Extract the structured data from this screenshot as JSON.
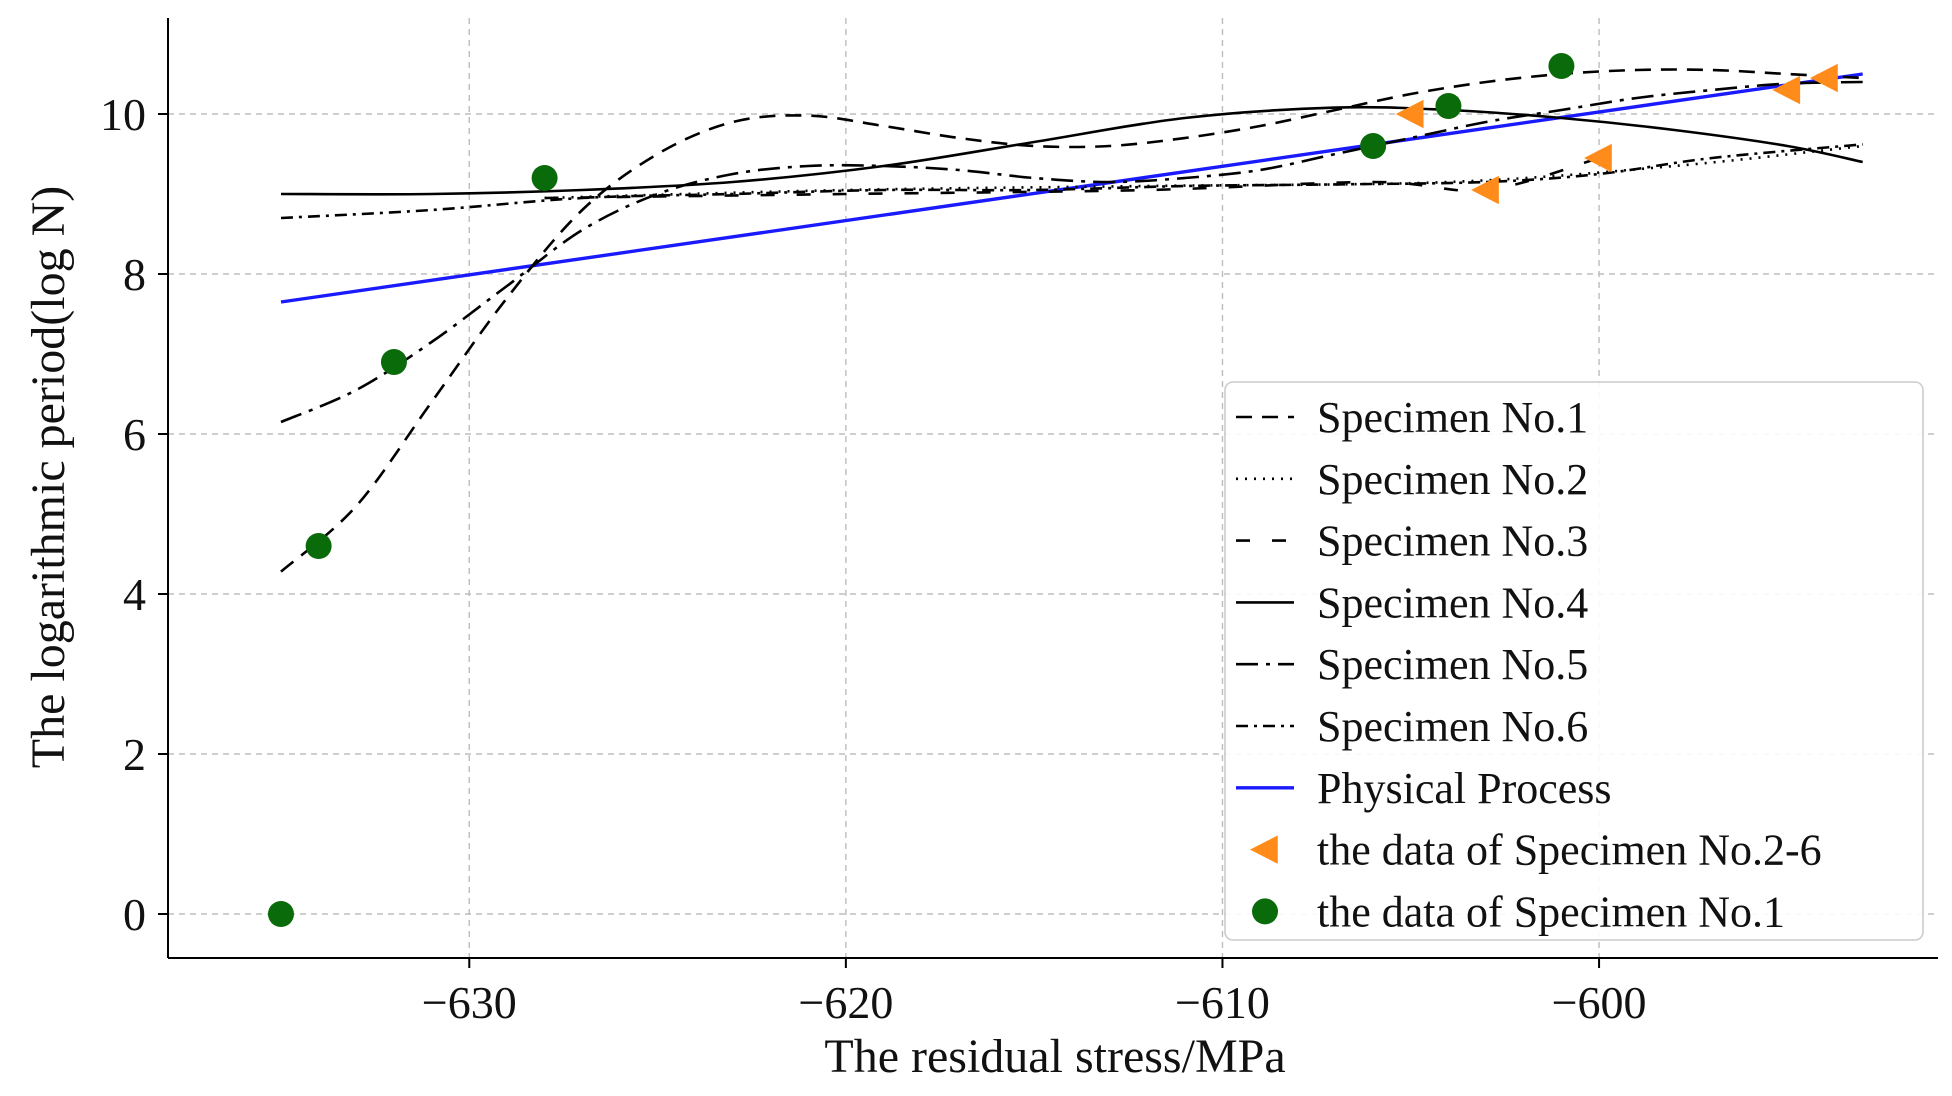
{
  "chart_data": {
    "type": "line",
    "xlabel": "The residual stress/MPa",
    "ylabel": "The logarithmic period(log N)",
    "xlim": [
      -638,
      -591
    ],
    "ylim": [
      -0.55,
      11.2
    ],
    "x_ticks": [
      -630,
      -620,
      -610,
      -600
    ],
    "x_tick_labels": [
      "−630",
      "−620",
      "−610",
      "−600"
    ],
    "y_ticks": [
      0,
      2,
      4,
      6,
      8,
      10
    ],
    "y_tick_labels": [
      "0",
      "2",
      "4",
      "6",
      "8",
      "10"
    ],
    "grid": true,
    "legend_position": "lower-right",
    "series": [
      {
        "name": "Specimen No.1",
        "style": "dashed",
        "color": "#000000",
        "x": [
          -635,
          -633,
          -631,
          -629,
          -627,
          -625,
          -623,
          -621,
          -619,
          -617,
          -615,
          -613,
          -611,
          -609,
          -607,
          -605,
          -603,
          -601,
          -599,
          -597,
          -595,
          -593
        ],
        "y": [
          4.28,
          5.1,
          6.4,
          7.7,
          8.8,
          9.5,
          9.9,
          9.98,
          9.85,
          9.7,
          9.6,
          9.6,
          9.7,
          9.85,
          10.05,
          10.25,
          10.4,
          10.5,
          10.55,
          10.55,
          10.5,
          10.45
        ]
      },
      {
        "name": "Specimen No.2",
        "style": "dotted",
        "color": "#000000",
        "x": [
          -628,
          -620,
          -612,
          -604,
          -598,
          -593
        ],
        "y": [
          8.95,
          9.05,
          9.1,
          9.15,
          9.35,
          9.6
        ]
      },
      {
        "name": "Specimen No.3",
        "style": "loose-dashed",
        "color": "#000000",
        "x": [
          -628,
          -620,
          -612,
          -606,
          -603,
          -600
        ],
        "y": [
          8.95,
          9.0,
          9.05,
          9.15,
          9.05,
          9.45
        ]
      },
      {
        "name": "Specimen No.4",
        "style": "solid",
        "color": "#000000",
        "x": [
          -635,
          -631,
          -627,
          -623,
          -619,
          -615,
          -611,
          -607,
          -604,
          -601,
          -598,
          -595,
          -593
        ],
        "y": [
          9.0,
          9.0,
          9.05,
          9.15,
          9.35,
          9.65,
          9.95,
          10.08,
          10.05,
          9.95,
          9.8,
          9.6,
          9.4
        ]
      },
      {
        "name": "Specimen No.5",
        "style": "dashdot",
        "color": "#000000",
        "x": [
          -635,
          -633,
          -631,
          -629,
          -627,
          -625,
          -623,
          -621,
          -619,
          -617,
          -615,
          -613,
          -611,
          -609,
          -607,
          -605,
          -603,
          -601,
          -599,
          -597,
          -595,
          -593
        ],
        "y": [
          6.15,
          6.55,
          7.15,
          7.85,
          8.55,
          9.0,
          9.25,
          9.35,
          9.35,
          9.3,
          9.2,
          9.15,
          9.2,
          9.3,
          9.5,
          9.7,
          9.9,
          10.05,
          10.2,
          10.3,
          10.38,
          10.4
        ]
      },
      {
        "name": "Specimen No.6",
        "style": "dashdot-fine",
        "color": "#000000",
        "x": [
          -635,
          -631,
          -627,
          -623,
          -619,
          -615,
          -611,
          -607,
          -603,
          -600,
          -597,
          -593
        ],
        "y": [
          8.7,
          8.8,
          8.95,
          9.0,
          9.05,
          9.05,
          9.1,
          9.12,
          9.15,
          9.25,
          9.45,
          9.62
        ]
      },
      {
        "name": "Physical Process",
        "style": "solid",
        "color": "#1a1aff",
        "x": [
          -635,
          -593
        ],
        "y": [
          7.65,
          10.5
        ]
      },
      {
        "name": "the data of Specimen No.2-6",
        "style": "markers",
        "marker": "triangle-left",
        "color": "#ff8c1a",
        "x": [
          -605,
          -603,
          -600,
          -595,
          -594
        ],
        "y": [
          10.0,
          9.05,
          9.45,
          10.3,
          10.45
        ]
      },
      {
        "name": "the data of Specimen No.1",
        "style": "markers",
        "marker": "circle",
        "color": "#0a6b0a",
        "x": [
          -635,
          -634,
          -632,
          -628,
          -606,
          -604,
          -601
        ],
        "y": [
          0.0,
          4.6,
          6.9,
          9.2,
          9.6,
          10.1,
          10.6
        ]
      }
    ]
  }
}
